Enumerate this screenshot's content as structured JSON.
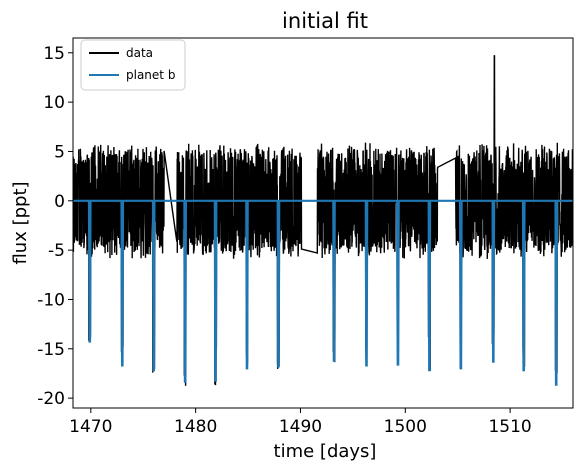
{
  "chart_data": {
    "type": "line",
    "title": "initial fit",
    "xlabel": "time [days]",
    "ylabel": "flux [ppt]",
    "xlim": [
      1468.3,
      1516.0
    ],
    "ylim": [
      -21.0,
      16.5
    ],
    "xticks": [
      1470,
      1480,
      1490,
      1500,
      1510
    ],
    "yticks": [
      -20,
      -15,
      -10,
      -5,
      0,
      5,
      10,
      15
    ],
    "legend_position": "top-left",
    "grid": false,
    "data_gaps": [
      [
        1477.0,
        1478.2
      ],
      [
        1490.1,
        1491.6
      ],
      [
        1503.1,
        1504.8
      ]
    ],
    "series": [
      {
        "name": "data",
        "color": "#000000",
        "style": "noisy-band",
        "band_low": -4.5,
        "band_high": 4.5,
        "spike": {
          "x": 1508.5,
          "y": 14.7
        }
      },
      {
        "name": "planet b",
        "color": "#1f77b4",
        "baseline": 0,
        "transits": [
          {
            "x": 1469.9,
            "depth": -14.7
          },
          {
            "x": 1473.0,
            "depth": -17.2
          },
          {
            "x": 1476.0,
            "depth": -17.7
          },
          {
            "x": 1479.0,
            "depth": -18.9
          },
          {
            "x": 1481.9,
            "depth": -18.8
          },
          {
            "x": 1484.9,
            "depth": -17.5
          },
          {
            "x": 1487.9,
            "depth": -17.3
          },
          {
            "x": 1493.2,
            "depth": -16.7
          },
          {
            "x": 1496.3,
            "depth": -17.2
          },
          {
            "x": 1499.3,
            "depth": -17.1
          },
          {
            "x": 1502.3,
            "depth": -17.7
          },
          {
            "x": 1505.3,
            "depth": -17.5
          },
          {
            "x": 1508.4,
            "depth": -16.8
          },
          {
            "x": 1511.3,
            "depth": -17.7
          },
          {
            "x": 1514.4,
            "depth": -19.2
          }
        ]
      }
    ]
  }
}
